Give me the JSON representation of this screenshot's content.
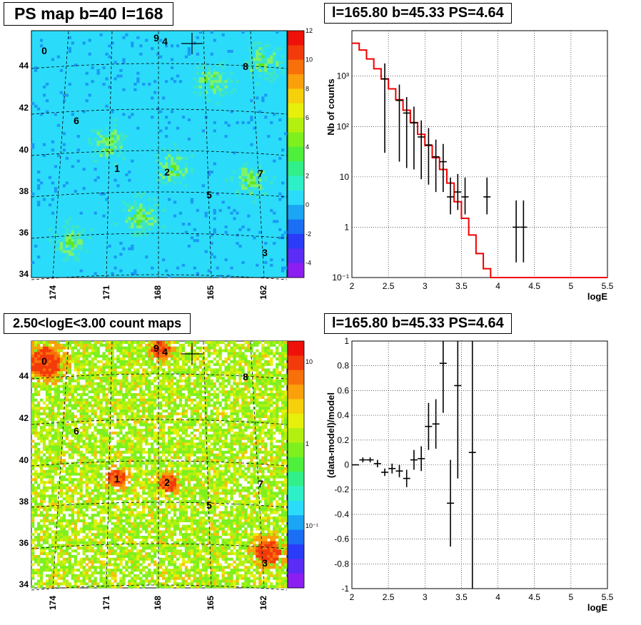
{
  "panels": {
    "ps_map": {
      "title": "PS map b=40 l=168",
      "x_ticks": [
        "174",
        "171",
        "168",
        "165",
        "162"
      ],
      "y_ticks": [
        "44",
        "42",
        "40",
        "38",
        "36",
        "34"
      ],
      "sources": [
        "0",
        "1",
        "2",
        "3",
        "4",
        "5",
        "6",
        "7",
        "8",
        "9"
      ],
      "colorbar": {
        "ticks": [
          "12",
          "10",
          "8",
          "6",
          "4",
          "2",
          "0",
          "-2",
          "-4"
        ],
        "range": [
          -5,
          12
        ]
      }
    },
    "count_map": {
      "title": "2.50<logE<3.00 count maps",
      "x_ticks": [
        "174",
        "171",
        "168",
        "165",
        "162"
      ],
      "y_ticks": [
        "44",
        "42",
        "40",
        "38",
        "36",
        "34"
      ],
      "sources": [
        "0",
        "1",
        "2",
        "3",
        "4",
        "5",
        "6",
        "7",
        "8",
        "9"
      ],
      "colorbar": {
        "ticks": [
          "10",
          "1",
          "10⁻¹"
        ],
        "scale": "log"
      }
    }
  },
  "chart_data": [
    {
      "type": "heatmap",
      "title": "PS map b=40 l=168",
      "xlabel": "",
      "ylabel": "",
      "x_ticks": [
        174,
        171,
        168,
        165,
        162
      ],
      "y_ticks": [
        44,
        42,
        40,
        38,
        36,
        34
      ],
      "z_range": [
        -5,
        12
      ],
      "source_labels": [
        "0",
        "1",
        "2",
        "3",
        "4",
        "5",
        "6",
        "7",
        "8",
        "9"
      ]
    },
    {
      "type": "line",
      "title": "l=165.80 b=45.33 PS=4.64",
      "xlabel": "logE",
      "ylabel": "Nb of counts",
      "y_scale": "log",
      "xlim": [
        2,
        5.5
      ],
      "ylim": [
        0.1,
        8000
      ],
      "x_ticks": [
        "2",
        "2.5",
        "3",
        "3.5",
        "4",
        "4.5",
        "5",
        "5.5"
      ],
      "y_ticks": [
        "10⁻¹",
        "1",
        "10",
        "10²",
        "10³"
      ],
      "grid": true,
      "model": {
        "edges": [
          2.0,
          2.1,
          2.2,
          2.3,
          2.4,
          2.5,
          2.6,
          2.7,
          2.8,
          2.9,
          3.0,
          3.1,
          3.2,
          3.3,
          3.4,
          3.5,
          3.6,
          3.7,
          3.8,
          3.9,
          4.0,
          5.5
        ],
        "values": [
          4500,
          3300,
          2200,
          1400,
          880,
          560,
          340,
          210,
          120,
          70,
          42,
          24,
          14,
          7.5,
          3.2,
          1.5,
          0.7,
          0.3,
          0.15,
          0.1,
          0.1
        ]
      },
      "data": {
        "x": [
          2.45,
          2.65,
          2.75,
          2.85,
          2.95,
          3.05,
          3.15,
          3.25,
          3.35,
          3.45,
          3.55,
          3.85,
          4.25,
          4.35
        ],
        "y": [
          880,
          330,
          185,
          118,
          62,
          43,
          25,
          20,
          4,
          5,
          4,
          4,
          1,
          1
        ],
        "err_low": [
          850,
          310,
          170,
          104,
          53,
          36,
          20,
          15,
          2.2,
          2.8,
          2.2,
          2.2,
          0.8,
          0.8
        ],
        "err_high": [
          910,
          350,
          200,
          130,
          70,
          50,
          30,
          25,
          5.7,
          6.4,
          5.7,
          5.7,
          2.4,
          2.4
        ]
      }
    },
    {
      "type": "heatmap",
      "title": "2.50<logE<3.00 count maps",
      "xlabel": "",
      "ylabel": "",
      "x_ticks": [
        174,
        171,
        168,
        165,
        162
      ],
      "y_ticks": [
        44,
        42,
        40,
        38,
        36,
        34
      ],
      "z_scale": "log",
      "source_labels": [
        "0",
        "1",
        "2",
        "3",
        "4",
        "5",
        "6",
        "7",
        "8",
        "9"
      ]
    },
    {
      "type": "scatter",
      "title": "l=165.80 b=45.33 PS=4.64",
      "xlabel": "logE",
      "ylabel": "(data-model)/model",
      "xlim": [
        2,
        5.5
      ],
      "ylim": [
        -1,
        1
      ],
      "x_ticks": [
        "2",
        "2.5",
        "3",
        "3.5",
        "4",
        "4.5",
        "5",
        "5.5"
      ],
      "y_ticks": [
        "-1",
        "-0.8",
        "-0.6",
        "-0.4",
        "-0.2",
        "0",
        "0.2",
        "0.4",
        "0.6",
        "0.8",
        "1"
      ],
      "grid": true,
      "x": [
        2.05,
        2.15,
        2.25,
        2.35,
        2.45,
        2.55,
        2.65,
        2.75,
        2.85,
        2.95,
        3.05,
        3.15,
        3.25,
        3.35,
        3.45,
        3.65
      ],
      "y": [
        0.0,
        0.04,
        0.04,
        0.01,
        -0.06,
        -0.03,
        -0.05,
        -0.11,
        0.04,
        0.05,
        0.31,
        0.33,
        0.82,
        -0.31,
        0.64,
        0.1
      ],
      "err": [
        0.0,
        0.02,
        0.02,
        0.03,
        0.03,
        0.04,
        0.05,
        0.07,
        0.08,
        0.1,
        0.19,
        0.2,
        0.4,
        0.35,
        0.75,
        1.2
      ]
    }
  ]
}
